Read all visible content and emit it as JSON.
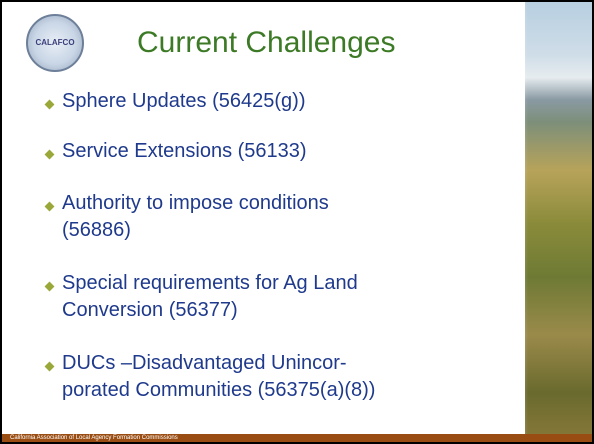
{
  "slide": {
    "logo": "CALAFCO",
    "title": "Current Challenges",
    "bullets": [
      {
        "lines": [
          "Sphere Updates (56425(g))"
        ]
      },
      {
        "lines": [
          "Service Extensions (56133)"
        ]
      },
      {
        "lines": [
          "Authority to impose conditions",
          "(56886)"
        ]
      },
      {
        "lines": [
          "Special requirements for Ag Land",
          "Conversion (56377)"
        ]
      },
      {
        "lines": [
          "DUCs –Disadvantaged Unincor-",
          "porated Communities (56375(a)(8))"
        ]
      }
    ],
    "footer": "California Association of Local Agency Formation Commissions"
  }
}
